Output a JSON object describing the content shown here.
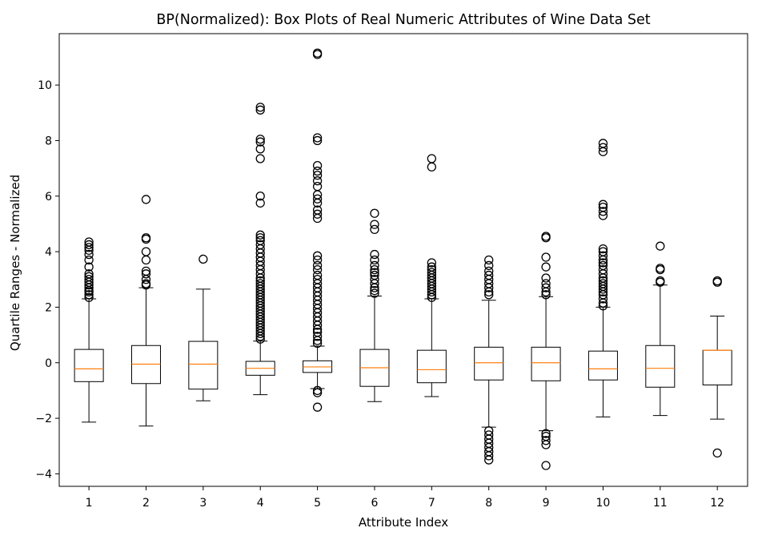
{
  "chart_data": {
    "type": "boxplot",
    "title": "BP(Normalized): Box Plots of Real Numeric Attributes of Wine Data Set",
    "xlabel": "Attribute Index",
    "ylabel": "Quartile Ranges - Normalized",
    "ylim": [
      -4.45,
      11.85
    ],
    "yticks": [
      -4,
      -2,
      0,
      2,
      4,
      6,
      8,
      10
    ],
    "ytick_labels": [
      "−4",
      "−2",
      "0",
      "2",
      "4",
      "6",
      "8",
      "10"
    ],
    "categories": [
      "1",
      "2",
      "3",
      "4",
      "5",
      "6",
      "7",
      "8",
      "9",
      "10",
      "11",
      "12"
    ],
    "grid": false,
    "colors": {
      "box": "#000000",
      "median": "#ff7f0e",
      "flier": "#000000"
    },
    "boxes": [
      {
        "category": "1",
        "whisker_low": -2.14,
        "q1": -0.68,
        "median": -0.22,
        "q3": 0.48,
        "whisker_high": 2.3,
        "fliers": [
          2.35,
          2.45,
          2.55,
          2.6,
          2.7,
          2.8,
          2.9,
          3.0,
          3.1,
          3.2,
          3.45,
          3.7,
          3.9,
          4.05,
          4.15,
          4.25,
          4.35
        ]
      },
      {
        "category": "2",
        "whisker_low": -2.28,
        "q1": -0.75,
        "median": -0.05,
        "q3": 0.62,
        "whisker_high": 2.7,
        "fliers": [
          2.8,
          2.85,
          3.0,
          3.2,
          3.3,
          3.7,
          4.0,
          4.45,
          4.5,
          5.88
        ]
      },
      {
        "category": "3",
        "whisker_low": -1.37,
        "q1": -0.95,
        "median": -0.05,
        "q3": 0.77,
        "whisker_high": 2.65,
        "fliers": [
          3.73
        ]
      },
      {
        "category": "4",
        "whisker_low": -1.15,
        "q1": -0.45,
        "median": -0.2,
        "q3": 0.05,
        "whisker_high": 0.78,
        "fliers": [
          0.85,
          0.95,
          1.05,
          1.15,
          1.25,
          1.35,
          1.45,
          1.55,
          1.65,
          1.75,
          1.85,
          1.95,
          2.05,
          2.15,
          2.25,
          2.35,
          2.45,
          2.55,
          2.65,
          2.75,
          2.85,
          2.95,
          3.05,
          3.2,
          3.35,
          3.5,
          3.65,
          3.8,
          3.95,
          4.1,
          4.25,
          4.4,
          4.5,
          4.6,
          5.75,
          6.0,
          7.35,
          7.7,
          7.95,
          8.05,
          9.1,
          9.2
        ]
      },
      {
        "category": "5",
        "whisker_low": -0.93,
        "q1": -0.35,
        "median": -0.15,
        "q3": 0.07,
        "whisker_high": 0.6,
        "fliers": [
          -1.0,
          -1.08,
          -1.6,
          0.7,
          0.8,
          0.95,
          1.1,
          1.2,
          1.35,
          1.5,
          1.65,
          1.8,
          1.95,
          2.1,
          2.25,
          2.4,
          2.55,
          2.7,
          2.85,
          3.0,
          3.15,
          3.35,
          3.5,
          3.7,
          3.85,
          5.2,
          5.35,
          5.5,
          5.75,
          5.9,
          6.05,
          6.35,
          6.55,
          6.75,
          6.9,
          7.1,
          8.0,
          8.1,
          11.1,
          11.15
        ]
      },
      {
        "category": "6",
        "whisker_low": -1.4,
        "q1": -0.85,
        "median": -0.18,
        "q3": 0.48,
        "whisker_high": 2.4,
        "fliers": [
          2.5,
          2.6,
          2.7,
          2.85,
          3.0,
          3.15,
          3.25,
          3.35,
          3.5,
          3.7,
          3.9,
          4.8,
          4.98,
          5.38
        ]
      },
      {
        "category": "7",
        "whisker_low": -1.22,
        "q1": -0.72,
        "median": -0.25,
        "q3": 0.45,
        "whisker_high": 2.3,
        "fliers": [
          2.35,
          2.45,
          2.55,
          2.65,
          2.75,
          2.85,
          2.95,
          3.05,
          3.15,
          3.25,
          3.35,
          3.45,
          3.6,
          7.05,
          7.35
        ]
      },
      {
        "category": "8",
        "whisker_low": -2.32,
        "q1": -0.62,
        "median": 0.0,
        "q3": 0.56,
        "whisker_high": 2.25,
        "fliers": [
          -2.45,
          -2.6,
          -2.75,
          -2.9,
          -3.05,
          -3.2,
          -3.35,
          -3.5,
          2.45,
          2.55,
          2.7,
          2.85,
          3.0,
          3.15,
          3.3,
          3.5,
          3.7
        ]
      },
      {
        "category": "9",
        "whisker_low": -2.45,
        "q1": -0.65,
        "median": 0.0,
        "q3": 0.56,
        "whisker_high": 2.38,
        "fliers": [
          -2.55,
          -2.65,
          -2.8,
          -2.95,
          -3.7,
          2.45,
          2.55,
          2.7,
          2.85,
          3.05,
          3.45,
          3.8,
          4.5,
          4.55
        ]
      },
      {
        "category": "10",
        "whisker_low": -1.95,
        "q1": -0.62,
        "median": -0.22,
        "q3": 0.42,
        "whisker_high": 2.0,
        "fliers": [
          2.05,
          2.15,
          2.3,
          2.45,
          2.55,
          2.65,
          2.75,
          2.85,
          2.95,
          3.05,
          3.2,
          3.35,
          3.5,
          3.6,
          3.7,
          3.85,
          4.0,
          4.1,
          5.3,
          5.45,
          5.6,
          5.7,
          7.6,
          7.75,
          7.9
        ]
      },
      {
        "category": "11",
        "whisker_low": -1.9,
        "q1": -0.88,
        "median": -0.2,
        "q3": 0.62,
        "whisker_high": 2.8,
        "fliers": [
          2.9,
          2.95,
          3.35,
          3.4,
          4.2
        ]
      },
      {
        "category": "12",
        "whisker_low": -2.03,
        "q1": -0.8,
        "median": 0.45,
        "q3": 0.45,
        "whisker_high": 1.68,
        "fliers": [
          -3.25,
          2.9,
          2.95
        ]
      }
    ]
  }
}
